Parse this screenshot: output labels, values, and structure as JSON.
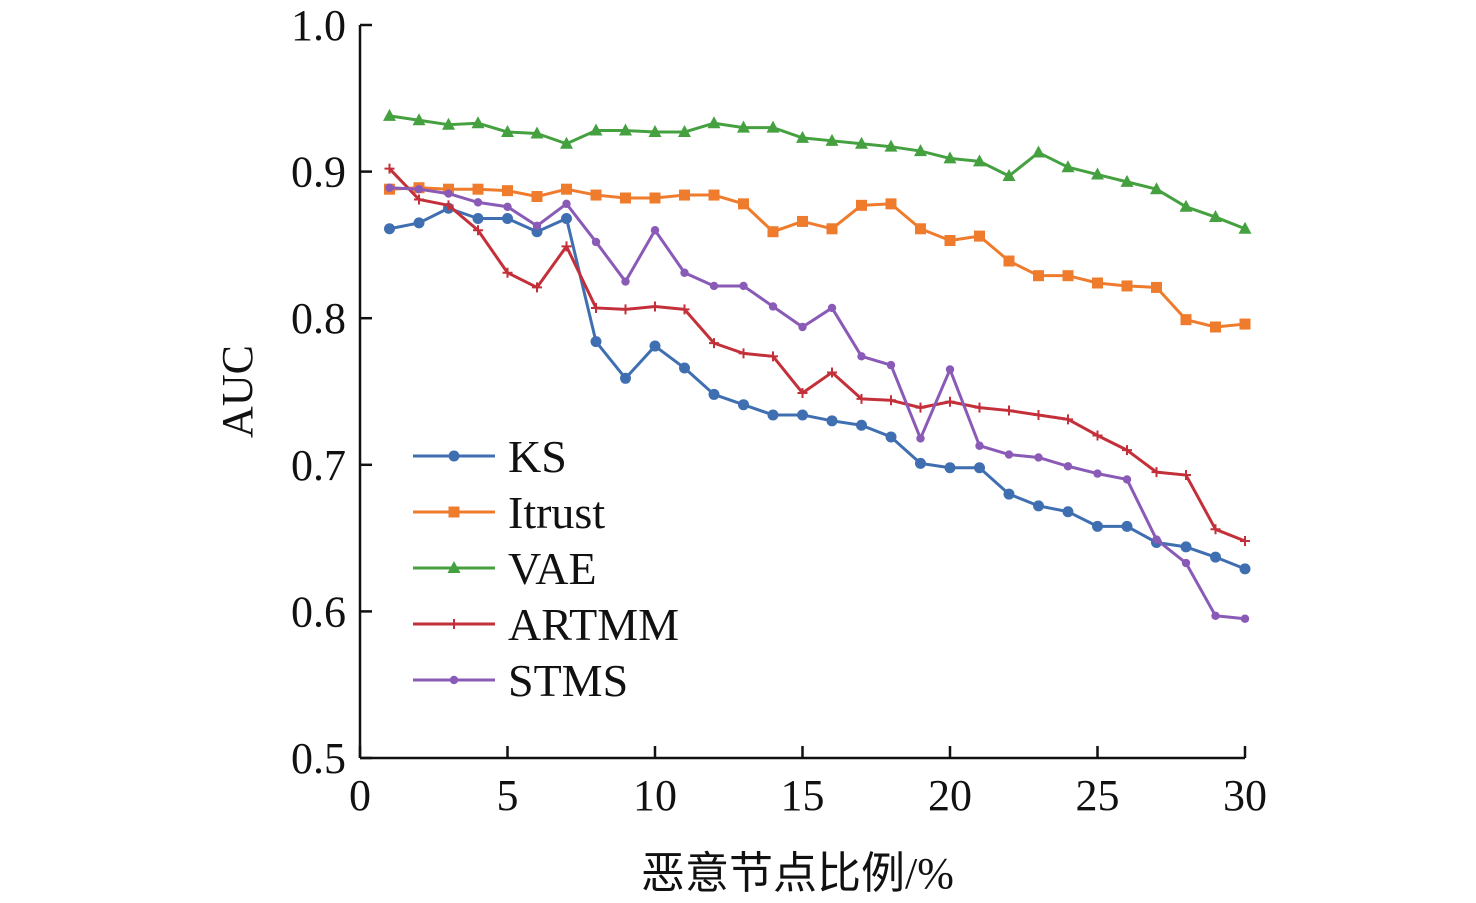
{
  "chart_data": {
    "type": "line",
    "title": "",
    "xlabel": "恶意节点比例/%",
    "ylabel": "AUC",
    "xlim": [
      0,
      30
    ],
    "ylim": [
      0.5,
      1.0
    ],
    "x_ticks": [
      "0",
      "5",
      "10",
      "15",
      "20",
      "25",
      "30"
    ],
    "y_ticks": [
      "0.5",
      "0.6",
      "0.7",
      "0.8",
      "0.9",
      "1.0"
    ],
    "grid": false,
    "legend_position": "lower-left",
    "x": [
      1,
      2,
      3,
      4,
      5,
      6,
      7,
      8,
      9,
      10,
      11,
      12,
      13,
      14,
      15,
      16,
      17,
      18,
      19,
      20,
      21,
      22,
      23,
      24,
      25,
      26,
      27,
      28,
      29,
      30
    ],
    "series": [
      {
        "name": "KS",
        "color": "#3f6fb0",
        "marker": "circle",
        "values": [
          0.861,
          0.865,
          0.875,
          0.868,
          0.868,
          0.859,
          0.868,
          0.784,
          0.759,
          0.781,
          0.766,
          0.748,
          0.741,
          0.734,
          0.734,
          0.73,
          0.727,
          0.719,
          0.701,
          0.698,
          0.698,
          0.68,
          0.672,
          0.668,
          0.658,
          0.658,
          0.647,
          0.644,
          0.637,
          0.629
        ]
      },
      {
        "name": "Itrust",
        "color": "#ef7b2d",
        "marker": "square",
        "values": [
          0.888,
          0.889,
          0.888,
          0.888,
          0.887,
          0.883,
          0.888,
          0.884,
          0.882,
          0.882,
          0.884,
          0.884,
          0.878,
          0.859,
          0.866,
          0.861,
          0.877,
          0.878,
          0.861,
          0.853,
          0.856,
          0.839,
          0.829,
          0.829,
          0.824,
          0.822,
          0.821,
          0.799,
          0.794,
          0.796
        ]
      },
      {
        "name": "VAE",
        "color": "#45a140",
        "marker": "triangle",
        "values": [
          0.938,
          0.935,
          0.932,
          0.933,
          0.927,
          0.926,
          0.919,
          0.928,
          0.928,
          0.927,
          0.927,
          0.933,
          0.93,
          0.93,
          0.923,
          0.921,
          0.919,
          0.917,
          0.914,
          0.909,
          0.907,
          0.897,
          0.913,
          0.903,
          0.898,
          0.893,
          0.888,
          0.876,
          0.869,
          0.861
        ]
      },
      {
        "name": "ARTMM",
        "color": "#c3303a",
        "marker": "plus",
        "values": [
          0.902,
          0.881,
          0.877,
          0.86,
          0.831,
          0.821,
          0.849,
          0.807,
          0.806,
          0.808,
          0.806,
          0.783,
          0.776,
          0.774,
          0.749,
          0.763,
          0.745,
          0.744,
          0.739,
          0.743,
          0.739,
          0.737,
          0.734,
          0.731,
          0.72,
          0.71,
          0.695,
          0.693,
          0.656,
          0.648
        ]
      },
      {
        "name": "STMS",
        "color": "#8a5ab7",
        "marker": "dot",
        "values": [
          0.889,
          0.888,
          0.885,
          0.879,
          0.876,
          0.863,
          0.878,
          0.852,
          0.825,
          0.86,
          0.831,
          0.822,
          0.822,
          0.808,
          0.794,
          0.807,
          0.774,
          0.768,
          0.718,
          0.765,
          0.713,
          0.707,
          0.705,
          0.699,
          0.694,
          0.69,
          0.649,
          0.633,
          0.597,
          0.595
        ]
      }
    ]
  }
}
